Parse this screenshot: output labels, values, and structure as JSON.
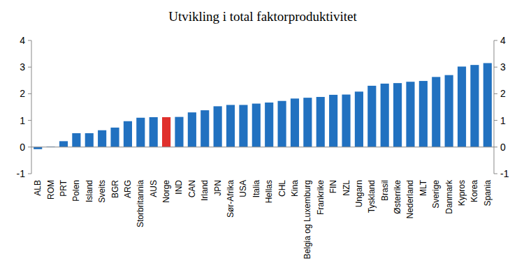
{
  "chart_data": {
    "type": "bar",
    "title": "Utvikling i total faktorproduktivitet",
    "categories": [
      "ALB",
      "ROM",
      "PRT",
      "Polen",
      "Island",
      "Sveits",
      "BGR",
      "ARG",
      "Storbritannia",
      "AUS",
      "Norge",
      "IND",
      "CAN",
      "Irland",
      "JPN",
      "Sør-Afrika",
      "USA",
      "Italia",
      "Hellas",
      "CHL",
      "Kina",
      "Belgia og Luxemburg",
      "Frankrike",
      "FIN",
      "NZL",
      "Ungarn",
      "Tyskland",
      "Brasil",
      "Østerrike",
      "Nederland",
      "MLT",
      "Sverige",
      "Danmark",
      "Kypros",
      "Korea",
      "Spania"
    ],
    "values": [
      -0.08,
      0.02,
      0.22,
      0.52,
      0.52,
      0.63,
      0.73,
      0.97,
      1.1,
      1.12,
      1.12,
      1.13,
      1.3,
      1.38,
      1.53,
      1.58,
      1.58,
      1.63,
      1.67,
      1.73,
      1.82,
      1.85,
      1.88,
      1.96,
      1.97,
      2.08,
      2.3,
      2.38,
      2.4,
      2.45,
      2.48,
      2.63,
      2.7,
      3.02,
      3.08,
      3.15
    ],
    "colors": [
      "#2171c0",
      "#2171c0",
      "#2171c0",
      "#2171c0",
      "#2171c0",
      "#2171c0",
      "#2171c0",
      "#2171c0",
      "#2171c0",
      "#2171c0",
      "#e0302c",
      "#2171c0",
      "#2171c0",
      "#2171c0",
      "#2171c0",
      "#2171c0",
      "#2171c0",
      "#2171c0",
      "#2171c0",
      "#2171c0",
      "#2171c0",
      "#2171c0",
      "#2171c0",
      "#2171c0",
      "#2171c0",
      "#2171c0",
      "#2171c0",
      "#2171c0",
      "#2171c0",
      "#2171c0",
      "#2171c0",
      "#2171c0",
      "#2171c0",
      "#2171c0",
      "#2171c0",
      "#2171c0"
    ],
    "ylim": [
      -1,
      4
    ],
    "yticks": [
      -1,
      0,
      1,
      2,
      3,
      4
    ],
    "grid": false
  }
}
